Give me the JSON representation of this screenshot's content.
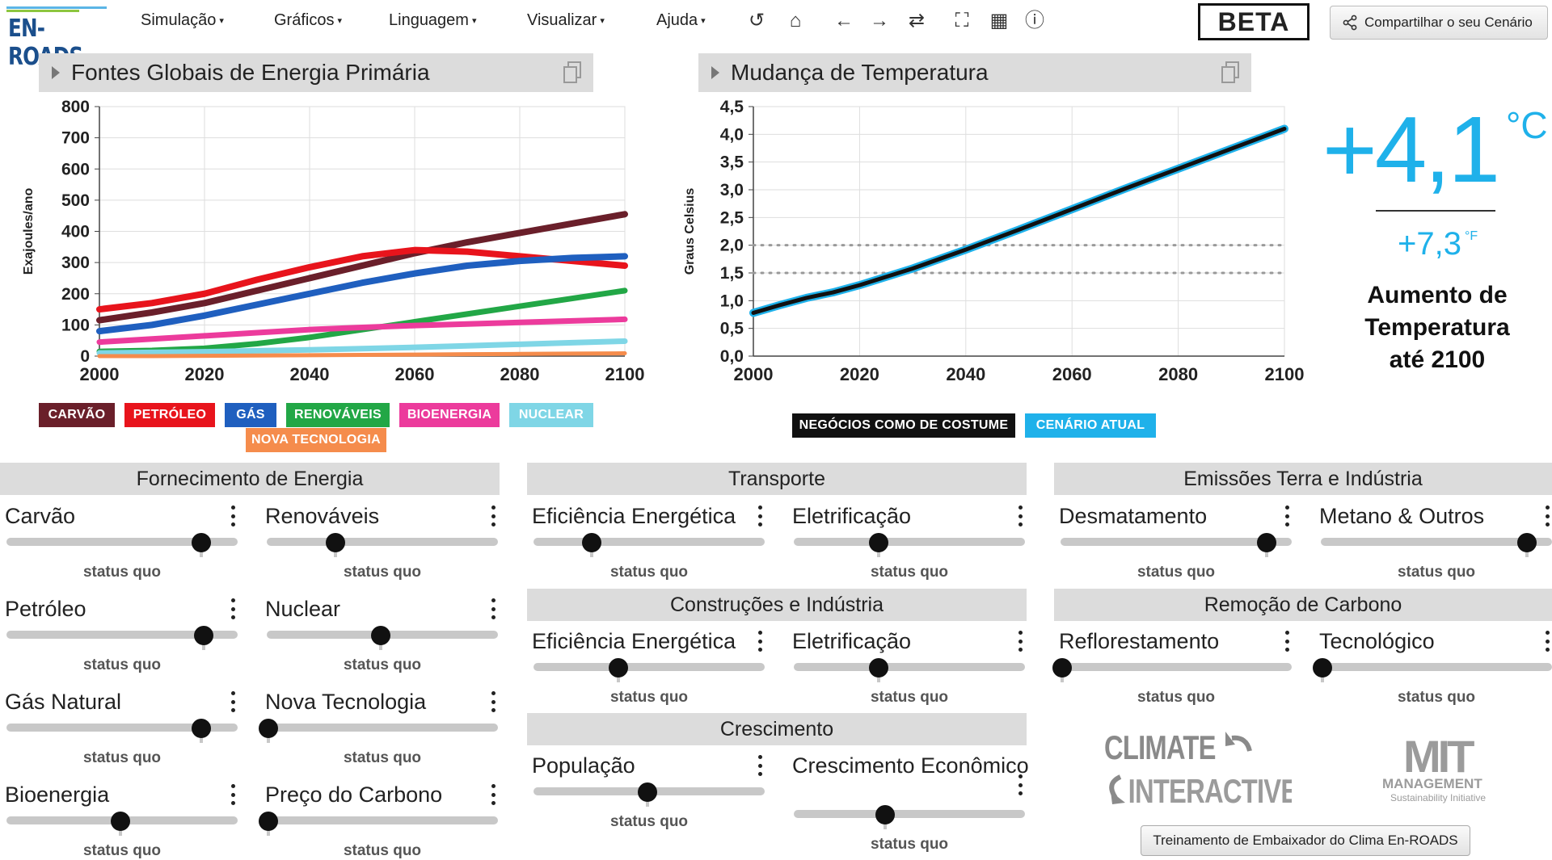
{
  "header": {
    "logo_text": "EN-ROADS",
    "menus": [
      "Simulação",
      "Gráficos",
      "Linguagem",
      "Visualizar",
      "Ajuda"
    ],
    "tools": [
      "undo-icon",
      "home-icon",
      "back-arrow-icon",
      "forward-arrow-icon",
      "swap-icon",
      "fullscreen-icon",
      "table-icon",
      "info-icon"
    ],
    "beta": "BETA",
    "share_label": "Compartilhar o seu Cenário"
  },
  "energy_panel": {
    "title": "Fontes Globais de Energia Primária",
    "legend": [
      "CARVÃO",
      "PETRÓLEO",
      "GÁS",
      "RENOVÁVEIS",
      "BIOENERGIA",
      "NUCLEAR",
      "NOVA TECNOLOGIA"
    ]
  },
  "temp_panel": {
    "title": "Mudança de Temperatura",
    "legend": [
      "NEGÓCIOS COMO DE COSTUME",
      "CENÁRIO ATUAL"
    ],
    "big_value": "+4,1",
    "big_unit": "°C",
    "small_value": "+7,3",
    "small_unit": "°F",
    "label_lines": [
      "Aumento de",
      "Temperatura",
      "até 2100"
    ]
  },
  "chart_data": [
    {
      "type": "line",
      "title": "Fontes Globais de Energia Primária",
      "xlabel": "",
      "ylabel": "Exajoules/ano",
      "xlim": [
        2000,
        2100
      ],
      "ylim": [
        0,
        800
      ],
      "xticks": [
        "2000",
        "2020",
        "2040",
        "2060",
        "2080",
        "2100"
      ],
      "yticks": [
        "0",
        "100",
        "200",
        "300",
        "400",
        "500",
        "600",
        "700",
        "800"
      ],
      "grid": true,
      "x": [
        2000,
        2010,
        2020,
        2030,
        2040,
        2050,
        2060,
        2070,
        2080,
        2090,
        2100
      ],
      "series": [
        {
          "name": "CARVÃO",
          "color": "#6a1f2a",
          "values": [
            115,
            140,
            170,
            210,
            250,
            290,
            330,
            365,
            395,
            425,
            455
          ]
        },
        {
          "name": "PETRÓLEO",
          "color": "#e8141c",
          "values": [
            150,
            170,
            200,
            245,
            285,
            320,
            340,
            335,
            320,
            305,
            290
          ]
        },
        {
          "name": "GÁS",
          "color": "#1f5fbf",
          "values": [
            80,
            100,
            130,
            165,
            200,
            235,
            265,
            290,
            305,
            315,
            320
          ]
        },
        {
          "name": "RENOVÁVEIS",
          "color": "#22a746",
          "values": [
            15,
            18,
            25,
            40,
            60,
            85,
            110,
            135,
            160,
            185,
            210
          ]
        },
        {
          "name": "BIOENERGIA",
          "color": "#ec3b9c",
          "values": [
            45,
            55,
            65,
            75,
            85,
            92,
            98,
            103,
            108,
            113,
            118
          ]
        },
        {
          "name": "NUCLEAR",
          "color": "#7fd6e6",
          "values": [
            10,
            12,
            14,
            17,
            20,
            24,
            28,
            33,
            38,
            43,
            48
          ]
        },
        {
          "name": "NOVA TECNOLOGIA",
          "color": "#f58c4c",
          "values": [
            0,
            0,
            1,
            2,
            3,
            4,
            5,
            6,
            7,
            8,
            9
          ]
        }
      ]
    },
    {
      "type": "line",
      "title": "Mudança de Temperatura",
      "xlabel": "",
      "ylabel": "Graus Celsius",
      "xlim": [
        2000,
        2100
      ],
      "ylim": [
        0,
        4.5
      ],
      "xticks": [
        "2000",
        "2020",
        "2040",
        "2060",
        "2080",
        "2100"
      ],
      "yticks": [
        "0,0",
        "0,5",
        "1,0",
        "1,5",
        "2,0",
        "2,5",
        "3,0",
        "3,5",
        "4,0",
        "4,5"
      ],
      "grid": true,
      "reference_lines": [
        1.5,
        2.0
      ],
      "x": [
        2000,
        2005,
        2010,
        2015,
        2020,
        2030,
        2040,
        2050,
        2060,
        2070,
        2080,
        2090,
        2100
      ],
      "series": [
        {
          "name": "CENÁRIO ATUAL",
          "color": "#1fb1ea",
          "values": [
            0.78,
            0.92,
            1.05,
            1.15,
            1.28,
            1.58,
            1.92,
            2.28,
            2.65,
            3.02,
            3.38,
            3.74,
            4.1
          ]
        },
        {
          "name": "NEGÓCIOS COMO DE COSTUME",
          "color": "#111111",
          "values": [
            0.78,
            0.92,
            1.05,
            1.15,
            1.28,
            1.58,
            1.92,
            2.28,
            2.65,
            3.02,
            3.38,
            3.74,
            4.1
          ]
        }
      ]
    }
  ],
  "sections": {
    "supply": "Fornecimento de Energia",
    "transport": "Transporte",
    "land": "Emissões Terra e Indústria",
    "buildings": "Construções e Indústria",
    "carbon": "Remoção de Carbono",
    "growth": "Crescimento"
  },
  "status_quo": "status quo",
  "sliders": [
    {
      "label": "Carvão",
      "value": 0.86
    },
    {
      "label": "Renováveis",
      "value": 0.3
    },
    {
      "label": "Petróleo",
      "value": 0.87
    },
    {
      "label": "Nuclear",
      "value": 0.5
    },
    {
      "label": "Gás Natural",
      "value": 0.86
    },
    {
      "label": "Nova Tecnologia",
      "value": 0.0
    },
    {
      "label": "Bioenergia",
      "value": 0.5
    },
    {
      "label": "Preço do Carbono",
      "value": 0.0
    },
    {
      "label": "Eficiência Energética",
      "value": 0.25
    },
    {
      "label": "Eletrificação",
      "value": 0.37
    },
    {
      "label": "Eficiência Energética",
      "value": 0.37
    },
    {
      "label": "Eletrificação",
      "value": 0.37
    },
    {
      "label": "População",
      "value": 0.5
    },
    {
      "label": "Crescimento Econômico",
      "value": 0.4
    },
    {
      "label": "Desmatamento",
      "value": 0.91
    },
    {
      "label": "Metano & Outros",
      "value": 0.91
    },
    {
      "label": "Reflorestamento",
      "value": 0.0
    },
    {
      "label": "Tecnológico",
      "value": 0.0
    }
  ],
  "logos": {
    "ci_top": "CLIMATE",
    "ci_bottom": "INTERACTIVE",
    "mit_top": "MIT",
    "mit_mid": "MANAGEMENT",
    "mit_bottom": "Sustainability Initiative"
  },
  "training_button": "Treinamento de Embaixador do Clima En-ROADS"
}
